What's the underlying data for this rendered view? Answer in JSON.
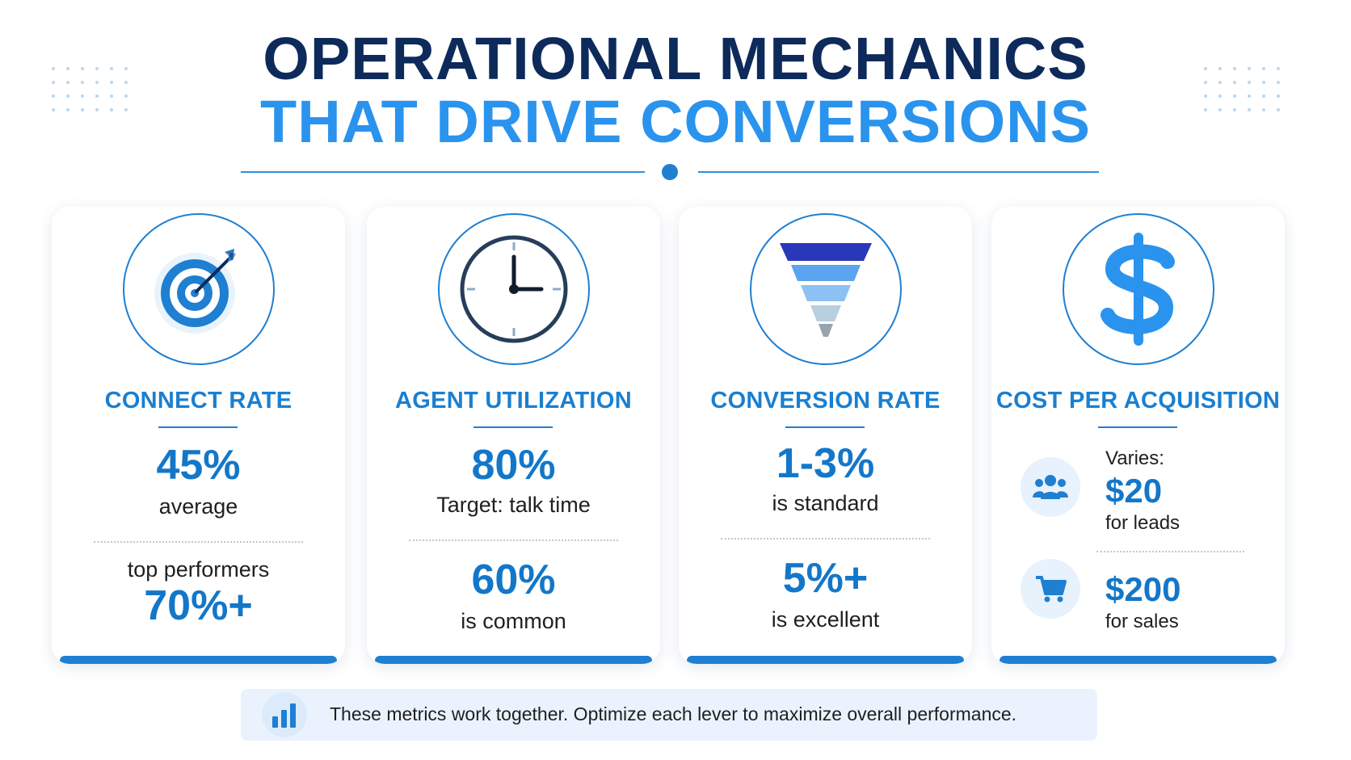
{
  "header": {
    "title_line1": "OPERATIONAL MECHANICS",
    "title_line2": "THAT DRIVE CONVERSIONS"
  },
  "colors": {
    "navy": "#0d2a5a",
    "accent_blue": "#2a93ee",
    "primary_blue": "#1f7fd1",
    "value_blue": "#1377c9"
  },
  "cards": [
    {
      "icon": "target-icon",
      "title": "CONNECT RATE",
      "primary_value": "45%",
      "primary_caption": "average",
      "secondary_caption": "top performers",
      "secondary_value": "70%+"
    },
    {
      "icon": "clock-icon",
      "title": "AGENT UTILIZATION",
      "primary_value": "80%",
      "primary_caption": "Target: talk time",
      "secondary_value": "60%",
      "secondary_caption": "is common"
    },
    {
      "icon": "funnel-icon",
      "title": "CONVERSION RATE",
      "primary_value": "1-3%",
      "primary_caption": "is standard",
      "secondary_value": "5%+",
      "secondary_caption": "is excellent"
    },
    {
      "icon": "dollar-icon",
      "title": "COST PER ACQUISITION",
      "intro": "Varies:",
      "items": [
        {
          "icon": "users-icon",
          "value": "$20",
          "caption": "for leads"
        },
        {
          "icon": "shopping-cart-icon",
          "value": "$200",
          "caption": "for sales"
        }
      ]
    }
  ],
  "footer": {
    "icon": "bar-chart-icon",
    "text": "These metrics work together. Optimize each lever to maximize overall performance."
  }
}
